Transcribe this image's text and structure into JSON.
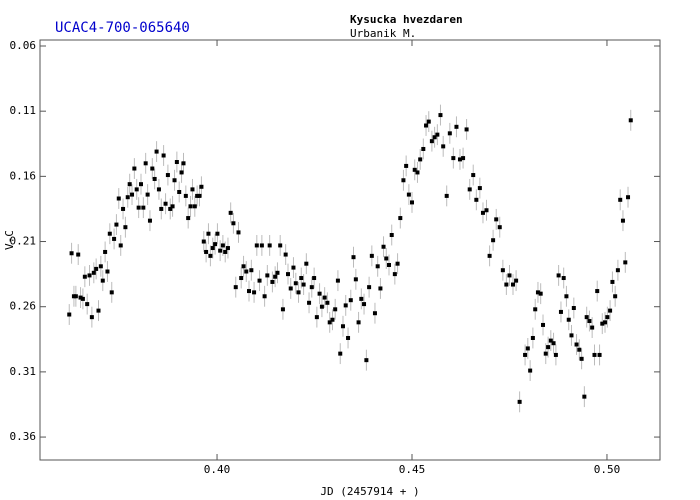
{
  "chart_data": {
    "type": "scatter",
    "title": "UCAC4-700-065640",
    "subtitle": "Kysucka hvezdaren",
    "author": "Urbanik M.",
    "x_label": "JD (2457914 + )",
    "y_label": "V-C",
    "xlim": [
      0.3546,
      0.5136
    ],
    "ylim": [
      0.0554,
      0.3776
    ],
    "y_inverted": true,
    "xticks": [
      {
        "value": 0.4,
        "label": "0.40"
      },
      0.45,
      {
        "value": 0.5,
        "label": "0.50"
      }
    ],
    "yticks": [
      0.06,
      0.11,
      0.16,
      0.21,
      0.26,
      0.31,
      0.36
    ],
    "error": 0.008,
    "series": [
      {
        "color": "#000000",
        "error_color": "#bbbbbb",
        "x": [
          0.3621,
          0.3627,
          0.3633,
          0.3638,
          0.3644,
          0.365,
          0.3656,
          0.3661,
          0.3667,
          0.3673,
          0.3679,
          0.3684,
          0.369,
          0.3696,
          0.3702,
          0.3707,
          0.3713,
          0.3719,
          0.3725,
          0.373,
          0.3736,
          0.3742,
          0.3748,
          0.3753,
          0.3759,
          0.3765,
          0.3771,
          0.3776,
          0.3782,
          0.3788,
          0.3794,
          0.3799,
          0.3805,
          0.3811,
          0.3817,
          0.3822,
          0.3828,
          0.3834,
          0.384,
          0.3845,
          0.3851,
          0.3857,
          0.3863,
          0.3868,
          0.3874,
          0.388,
          0.3886,
          0.3891,
          0.3897,
          0.3903,
          0.3909,
          0.3914,
          0.392,
          0.3926,
          0.3932,
          0.3937,
          0.3943,
          0.3949,
          0.3955,
          0.396,
          0.3966,
          0.3972,
          0.3978,
          0.3983,
          0.3989,
          0.3995,
          0.4001,
          0.4008,
          0.4015,
          0.4021,
          0.4028,
          0.4035,
          0.4042,
          0.4048,
          0.4055,
          0.4062,
          0.4068,
          0.4075,
          0.4082,
          0.4088,
          0.4095,
          0.4102,
          0.4109,
          0.4115,
          0.4122,
          0.4129,
          0.4135,
          0.4142,
          0.4149,
          0.4155,
          0.4162,
          0.4169,
          0.4176,
          0.4182,
          0.4189,
          0.4196,
          0.4202,
          0.4209,
          0.4216,
          0.4222,
          0.4229,
          0.4236,
          0.4243,
          0.4249,
          0.4256,
          0.4263,
          0.4269,
          0.4276,
          0.4283,
          0.4289,
          0.4296,
          0.4303,
          0.431,
          0.4316,
          0.4323,
          0.433,
          0.4336,
          0.4343,
          0.435,
          0.4356,
          0.4363,
          0.437,
          0.4377,
          0.4383,
          0.439,
          0.4397,
          0.4405,
          0.4412,
          0.4419,
          0.4427,
          0.4434,
          0.4441,
          0.4448,
          0.4456,
          0.4463,
          0.447,
          0.4478,
          0.4485,
          0.4492,
          0.45,
          0.4507,
          0.4514,
          0.4521,
          0.4529,
          0.4536,
          0.4543,
          0.4551,
          0.4558,
          0.4565,
          0.4573,
          0.458,
          0.4589,
          0.4597,
          0.4606,
          0.4614,
          0.4623,
          0.4631,
          0.464,
          0.4648,
          0.4657,
          0.4665,
          0.4674,
          0.4682,
          0.4691,
          0.4699,
          0.4708,
          0.4716,
          0.4725,
          0.4733,
          0.4742,
          0.475,
          0.4759,
          0.4767,
          0.4776,
          0.479,
          0.4797,
          0.4803,
          0.481,
          0.4816,
          0.4823,
          0.483,
          0.4836,
          0.4843,
          0.4849,
          0.4856,
          0.4863,
          0.4869,
          0.4876,
          0.4882,
          0.4889,
          0.4896,
          0.4902,
          0.4909,
          0.4915,
          0.4922,
          0.4929,
          0.4935,
          0.4942,
          0.4948,
          0.4955,
          0.4962,
          0.4968,
          0.4975,
          0.4981,
          0.4988,
          0.4995,
          0.5001,
          0.5008,
          0.5014,
          0.5021,
          0.5028,
          0.5034,
          0.5041,
          0.5047,
          0.5054,
          0.5061
        ],
        "values": [
          0.266,
          0.219,
          0.252,
          0.252,
          0.22,
          0.253,
          0.254,
          0.237,
          0.258,
          0.236,
          0.268,
          0.234,
          0.231,
          0.263,
          0.229,
          0.24,
          0.218,
          0.233,
          0.204,
          0.249,
          0.208,
          0.197,
          0.177,
          0.213,
          0.185,
          0.199,
          0.176,
          0.166,
          0.174,
          0.154,
          0.17,
          0.184,
          0.166,
          0.184,
          0.15,
          0.174,
          0.194,
          0.154,
          0.162,
          0.141,
          0.17,
          0.185,
          0.144,
          0.181,
          0.159,
          0.185,
          0.183,
          0.163,
          0.149,
          0.172,
          0.157,
          0.15,
          0.175,
          0.192,
          0.183,
          0.17,
          0.183,
          0.175,
          0.175,
          0.168,
          0.21,
          0.218,
          0.204,
          0.221,
          0.215,
          0.212,
          0.204,
          0.217,
          0.213,
          0.218,
          0.215,
          0.188,
          0.196,
          0.245,
          0.203,
          0.238,
          0.229,
          0.233,
          0.248,
          0.232,
          0.249,
          0.213,
          0.24,
          0.213,
          0.252,
          0.236,
          0.213,
          0.241,
          0.237,
          0.234,
          0.213,
          0.262,
          0.22,
          0.235,
          0.246,
          0.23,
          0.242,
          0.249,
          0.238,
          0.243,
          0.227,
          0.257,
          0.245,
          0.238,
          0.268,
          0.25,
          0.26,
          0.253,
          0.257,
          0.272,
          0.27,
          0.262,
          0.24,
          0.296,
          0.275,
          0.259,
          0.284,
          0.255,
          0.222,
          0.239,
          0.272,
          0.254,
          0.258,
          0.301,
          0.245,
          0.221,
          0.265,
          0.229,
          0.246,
          0.214,
          0.223,
          0.228,
          0.205,
          0.235,
          0.227,
          0.192,
          0.163,
          0.152,
          0.174,
          0.18,
          0.155,
          0.157,
          0.147,
          0.139,
          0.121,
          0.118,
          0.133,
          0.13,
          0.128,
          0.113,
          0.137,
          0.175,
          0.127,
          0.146,
          0.122,
          0.147,
          0.146,
          0.124,
          0.17,
          0.159,
          0.178,
          0.169,
          0.188,
          0.186,
          0.221,
          0.209,
          0.193,
          0.199,
          0.232,
          0.243,
          0.236,
          0.243,
          0.24,
          0.333,
          0.297,
          0.292,
          0.309,
          0.284,
          0.262,
          0.249,
          0.25,
          0.274,
          0.296,
          0.291,
          0.286,
          0.288,
          0.297,
          0.236,
          0.264,
          0.238,
          0.252,
          0.27,
          0.282,
          0.261,
          0.289,
          0.293,
          0.3,
          0.329,
          0.268,
          0.271,
          0.276,
          0.297,
          0.248,
          0.297,
          0.273,
          0.272,
          0.268,
          0.263,
          0.241,
          0.252,
          0.232,
          0.178,
          0.194,
          0.226,
          0.176,
          0.117
        ]
      }
    ]
  }
}
